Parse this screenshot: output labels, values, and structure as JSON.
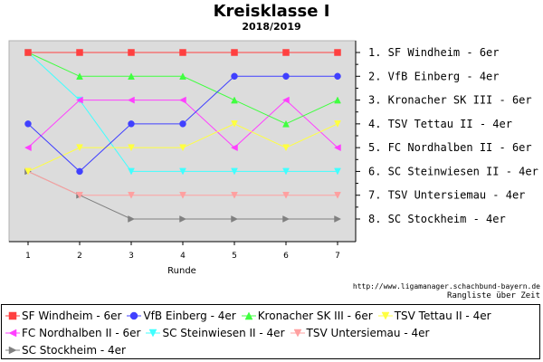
{
  "chart_data": {
    "type": "line",
    "title": "Kreisklasse I",
    "subtitle": "2018/2019",
    "xlabel": "Runde",
    "ylabel": "",
    "x": [
      1,
      2,
      3,
      4,
      5,
      6,
      7
    ],
    "ylim": [
      1,
      8
    ],
    "y_inverted": true,
    "grid": false,
    "series": [
      {
        "name": "SF Windheim - 6er",
        "color": "#ff4040",
        "marker": "square",
        "x": [
          1,
          2,
          3,
          4,
          5,
          6,
          7
        ],
        "values": [
          1,
          1,
          1,
          1,
          1,
          1,
          1
        ]
      },
      {
        "name": "VfB Einberg - 4er",
        "color": "#4040ff",
        "marker": "circle",
        "x": [
          1,
          2,
          3,
          4,
          5,
          6,
          7
        ],
        "values": [
          4,
          6,
          4,
          4,
          2,
          2,
          2
        ]
      },
      {
        "name": "Kronacher SK III - 6er",
        "color": "#40ff40",
        "marker": "triangle-up",
        "x": [
          1,
          2,
          3,
          4,
          5,
          6,
          7
        ],
        "values": [
          1,
          2,
          2,
          2,
          3,
          4,
          3
        ]
      },
      {
        "name": "TSV Tettau II - 4er",
        "color": "#ffff40",
        "marker": "triangle-down",
        "x": [
          1,
          2,
          3,
          4,
          5,
          6,
          7
        ],
        "values": [
          6,
          5,
          5,
          5,
          4,
          5,
          4
        ]
      },
      {
        "name": "FC Nordhalben II - 6er",
        "color": "#ff40ff",
        "marker": "triangle-left",
        "x": [
          1,
          2,
          3,
          4,
          5,
          6,
          7
        ],
        "values": [
          5,
          3,
          3,
          3,
          5,
          3,
          5
        ]
      },
      {
        "name": "SC Steinwiesen II - 4er",
        "color": "#40ffff",
        "marker": "triangle-down",
        "x": [
          1,
          2,
          3,
          4,
          5,
          6,
          7
        ],
        "values": [
          1,
          3,
          6,
          6,
          6,
          6,
          6
        ]
      },
      {
        "name": "TSV Untersiemau - 4er",
        "color": "#ffa0a0",
        "marker": "triangle-down",
        "x": [
          1,
          2,
          3,
          4,
          5,
          6,
          7
        ],
        "values": [
          6,
          7,
          7,
          7,
          7,
          7,
          7
        ]
      },
      {
        "name": "SC Stockheim - 4er",
        "color": "#808080",
        "marker": "triangle-right",
        "x": [
          1,
          2,
          3,
          4,
          5,
          6,
          7
        ],
        "values": [
          6,
          7,
          8,
          8,
          8,
          8,
          8
        ]
      }
    ],
    "standings": [
      "1. SF Windheim - 6er",
      "2. VfB Einberg - 4er",
      "3. Kronacher SK III - 6er",
      "4. TSV Tettau II - 4er",
      "5. FC Nordhalben II - 6er",
      "6. SC Steinwiesen II - 4er",
      "7. TSV Untersiemau - 4er",
      "8. SC Stockheim - 4er"
    ],
    "legend_position": "bottom"
  },
  "footer": {
    "url": "http://www.ligamanager.schachbund-bayern.de",
    "link": "Rangliste über Zeit"
  },
  "colors": {
    "plot_background": "#dcdcdc",
    "frame": "#000000"
  }
}
